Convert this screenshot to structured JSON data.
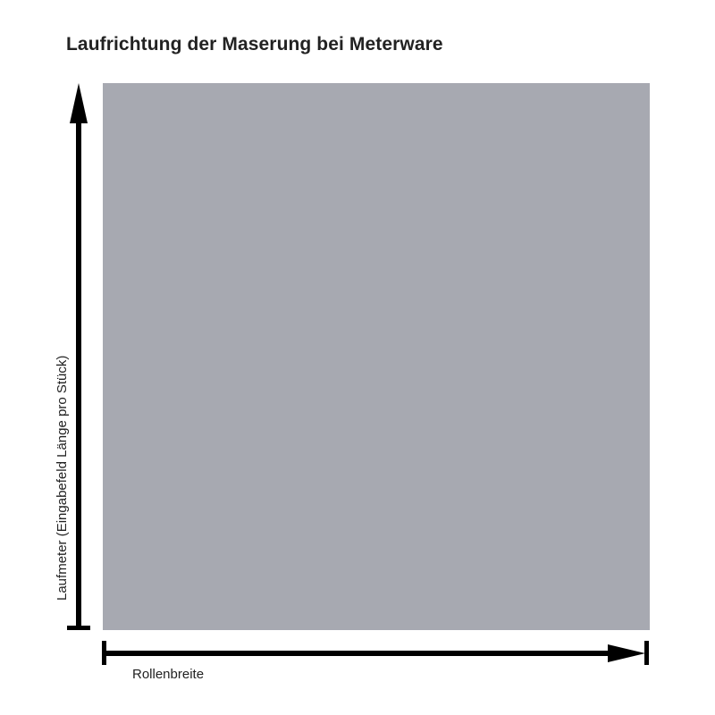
{
  "title": "Laufrichtung der Maserung bei Meterware",
  "vertical_label": "Laufmeter (Eingabefeld Länge pro Stück)",
  "horizontal_label": "Rollenbreite",
  "colors": {
    "panel": "#a7a9b1",
    "arrow": "#000000",
    "text": "#222222"
  }
}
